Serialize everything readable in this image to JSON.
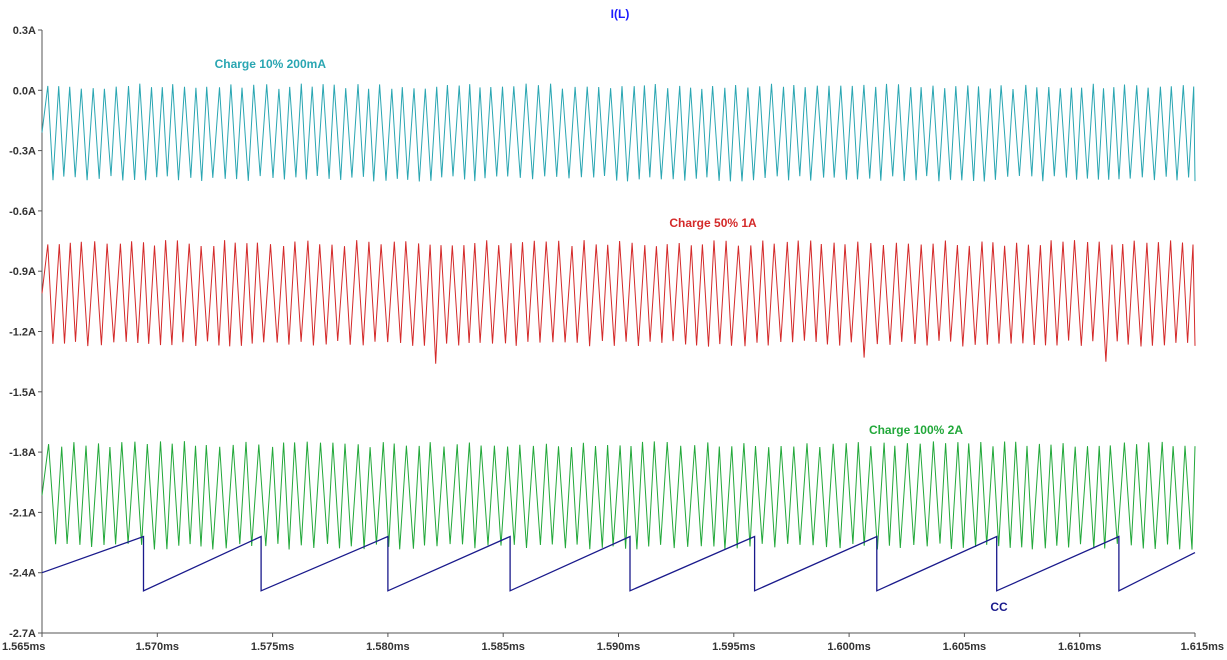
{
  "chart_data": {
    "type": "line",
    "title": "I(L)",
    "xlabel": "",
    "ylabel": "",
    "xlim": [
      1.565,
      1.615
    ],
    "ylim": [
      -2.7,
      0.3
    ],
    "x_unit": "ms",
    "y_unit": "A",
    "x_ticks": [
      "1.565ms",
      "1.570ms",
      "1.575ms",
      "1.580ms",
      "1.585ms",
      "1.590ms",
      "1.595ms",
      "1.600ms",
      "1.605ms",
      "1.610ms",
      "1.615ms"
    ],
    "y_ticks": [
      "0.3A",
      "0.0A",
      "-0.3A",
      "-0.6A",
      "-0.9A",
      "-1.2A",
      "-1.5A",
      "-1.8A",
      "-2.1A",
      "-2.4A",
      "-2.7A"
    ],
    "grid": false,
    "series": [
      {
        "name": "Charge 10% 200mA",
        "color": "#2aa6b2",
        "waveform": "triangle",
        "max": 0.02,
        "min": -0.44,
        "period_ms": 0.000505,
        "label_at": {
          "x": 1.5749,
          "y": 0.11
        }
      },
      {
        "name": "Charge 50% 1A",
        "color": "#d42a2a",
        "waveform": "triangle",
        "max": -0.76,
        "min": -1.26,
        "period_ms": 0.00052,
        "dips": [
          {
            "x": 1.582,
            "y": -1.36
          },
          {
            "x": 1.5952,
            "y": -1.37
          },
          {
            "x": 1.6009,
            "y": -1.33
          },
          {
            "x": 1.6112,
            "y": -1.35
          }
        ],
        "label_at": {
          "x": 1.5941,
          "y": -0.68
        }
      },
      {
        "name": "Charge 100% 2A",
        "color": "#22a83a",
        "waveform": "triangle",
        "max": -1.76,
        "min": -2.27,
        "period_ms": 0.000535,
        "label_at": {
          "x": 1.6029,
          "y": -1.71
        }
      },
      {
        "name": "CC",
        "color": "#1a1a8c",
        "waveform": "sawtooth",
        "resets": [
          1.5694,
          1.5745,
          1.58,
          1.5853,
          1.5905,
          1.5959,
          1.6012,
          1.6064,
          1.6117
        ],
        "peak": -2.22,
        "trough": -2.49,
        "start": {
          "x": 1.565,
          "y": -2.4
        },
        "end": {
          "x": 1.615,
          "y": -2.3
        },
        "label_at": {
          "x": 1.6065,
          "y": -2.59
        }
      }
    ]
  }
}
